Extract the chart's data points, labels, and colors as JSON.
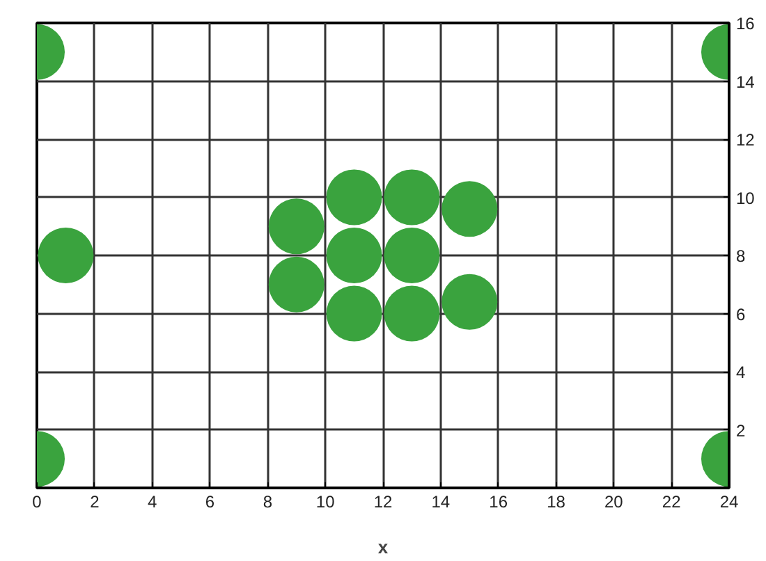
{
  "chart_data": {
    "type": "scatter",
    "xlabel": "x",
    "x": [
      0,
      1,
      0,
      24,
      24,
      11,
      13,
      15,
      9,
      9,
      11,
      13,
      15,
      11,
      13
    ],
    "values": [
      15,
      8,
      1,
      1,
      15,
      10,
      10,
      9.6,
      9,
      7,
      6,
      6,
      6.4,
      8,
      8
    ],
    "color": "#3aa33e",
    "marker": "circle",
    "xlim": [
      0,
      24
    ],
    "ylim": [
      0,
      16
    ],
    "xticks": [
      0,
      2,
      4,
      6,
      8,
      10,
      12,
      14,
      16,
      18,
      20,
      22,
      24
    ],
    "yticks": [
      {
        "value": 0,
        "label": null
      },
      2,
      4,
      6,
      8,
      10,
      12,
      14,
      16
    ],
    "grid": true
  }
}
